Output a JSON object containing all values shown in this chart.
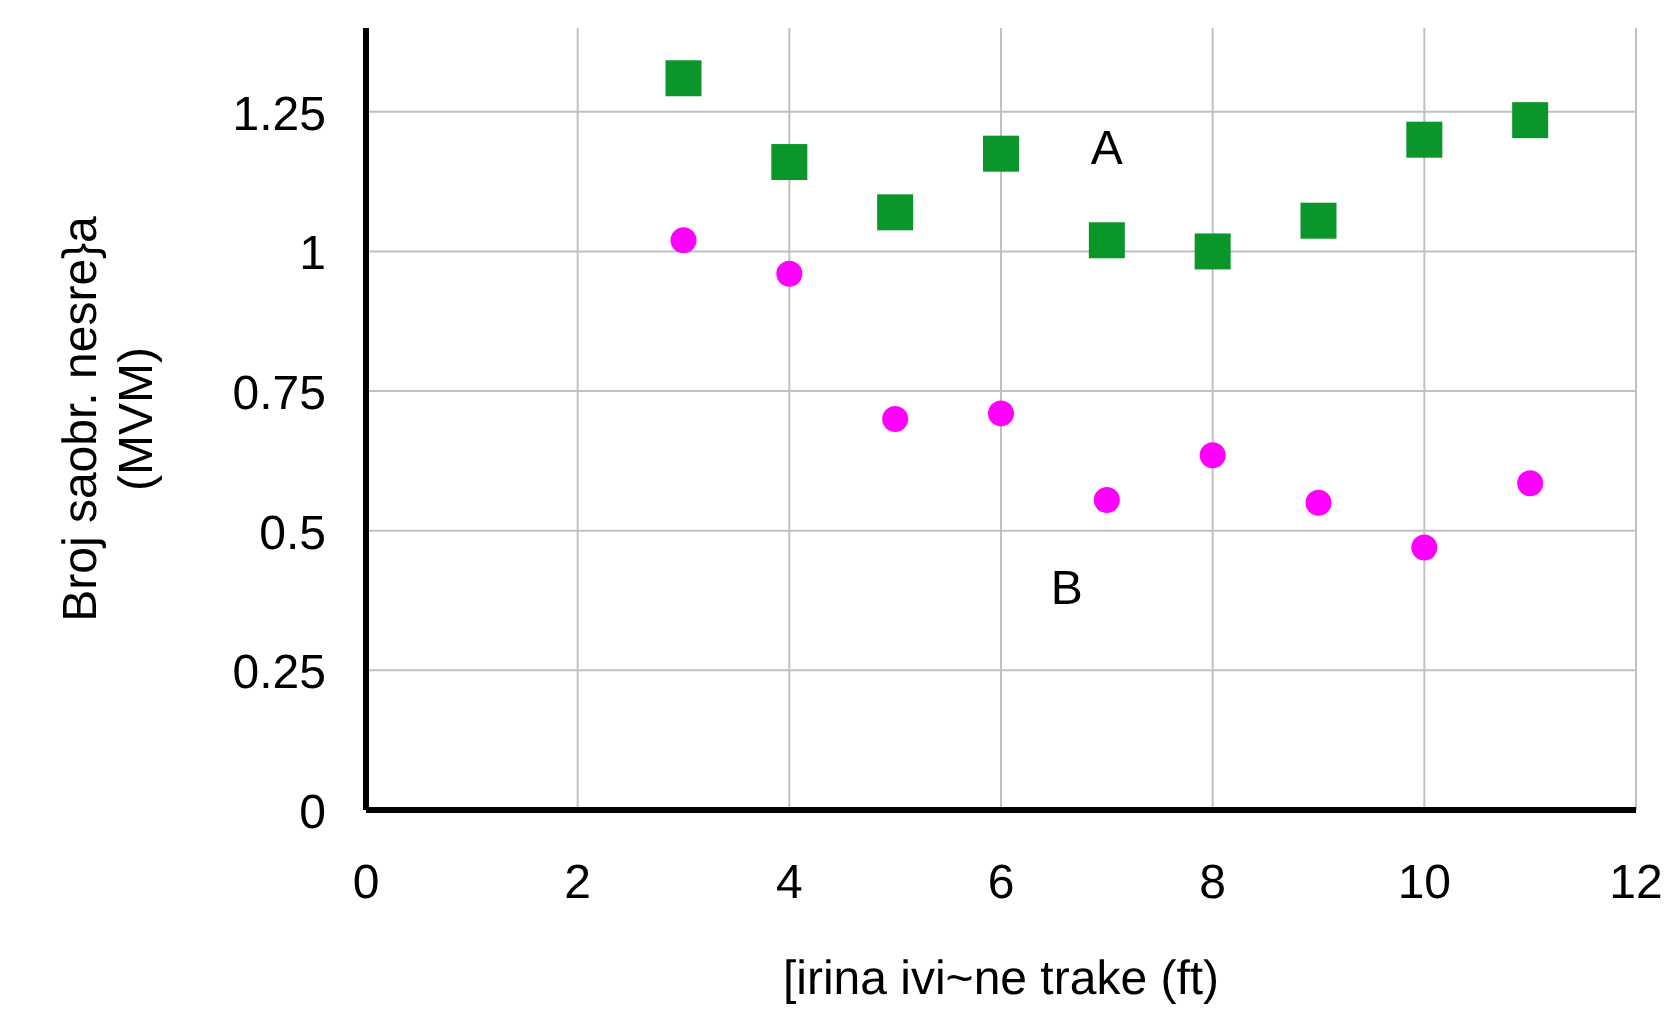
{
  "chart_data": {
    "type": "scatter",
    "xlabel": "[irina ivi~ne trake (ft)",
    "ylabel": "Broj saobr. nesre}a\n(MVM)",
    "x": [
      3,
      4,
      5,
      6,
      7,
      8,
      9,
      10,
      11
    ],
    "series": [
      {
        "name": "A",
        "color": "#0a962a",
        "marker": "square",
        "values": [
          1.31,
          1.16,
          1.07,
          1.175,
          1.02,
          1.0,
          1.055,
          1.2,
          1.235
        ]
      },
      {
        "name": "B",
        "color": "#ff00ff",
        "marker": "circle",
        "values": [
          1.02,
          0.96,
          0.7,
          0.71,
          0.555,
          0.635,
          0.55,
          0.47,
          0.585
        ]
      }
    ],
    "xlim": [
      0,
      12
    ],
    "xticks": [
      0,
      2,
      4,
      6,
      8,
      10,
      12
    ],
    "ylim": [
      0,
      1.4
    ],
    "yticks": [
      0,
      0.25,
      0.5,
      0.75,
      1,
      1.25
    ],
    "grid": true
  }
}
